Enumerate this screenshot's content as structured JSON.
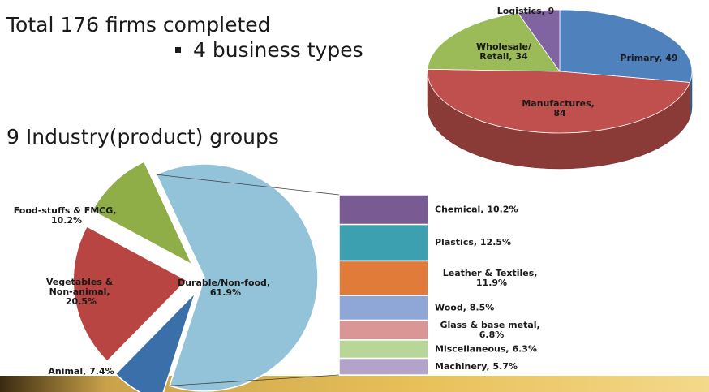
{
  "texts": {
    "title": "Total 176 firms completed",
    "bullet": "4 business types",
    "subtitle": "9 Industry(product) groups"
  },
  "chart_data": [
    {
      "type": "pie3d",
      "values": [
        49,
        84,
        34,
        9
      ],
      "value_labels": [
        "Primary, 49",
        "Manufactures, 84",
        "Wholesale/Retail, 34",
        "Logistics, 9"
      ],
      "colors": [
        "#4f81bd",
        "#c0504d",
        "#9bbb59",
        "#8064a2"
      ]
    },
    {
      "type": "bar_of_pie",
      "values": [
        61.9,
        7.4,
        20.5,
        10.2
      ],
      "value_labels": [
        "Durable/Non-food, 61.9%",
        "Animal, 7.4%",
        "Vegetables & Non-animal, 20.5%",
        "Food-stuffs & FMCG, 10.2%"
      ],
      "colors": [
        "#93c3d8",
        "#3a6faa",
        "#b94543",
        "#8fae48"
      ],
      "breakdown": {
        "values": [
          10.2,
          12.5,
          11.9,
          8.5,
          6.8,
          6.3,
          5.7
        ],
        "value_labels": [
          "Chemical, 10.2%",
          "Plastics, 12.5%",
          "Leather & Textiles, 11.9%",
          "Wood, 8.5%",
          "Glass & base metal, 6.8%",
          "Miscellaneous, 6.3%",
          "Machinery, 5.7%"
        ],
        "colors": [
          "#7a5a93",
          "#3ca0b0",
          "#e07b39",
          "#8fa7d6",
          "#d99694",
          "#b9d699",
          "#b3a3cb"
        ]
      }
    }
  ]
}
